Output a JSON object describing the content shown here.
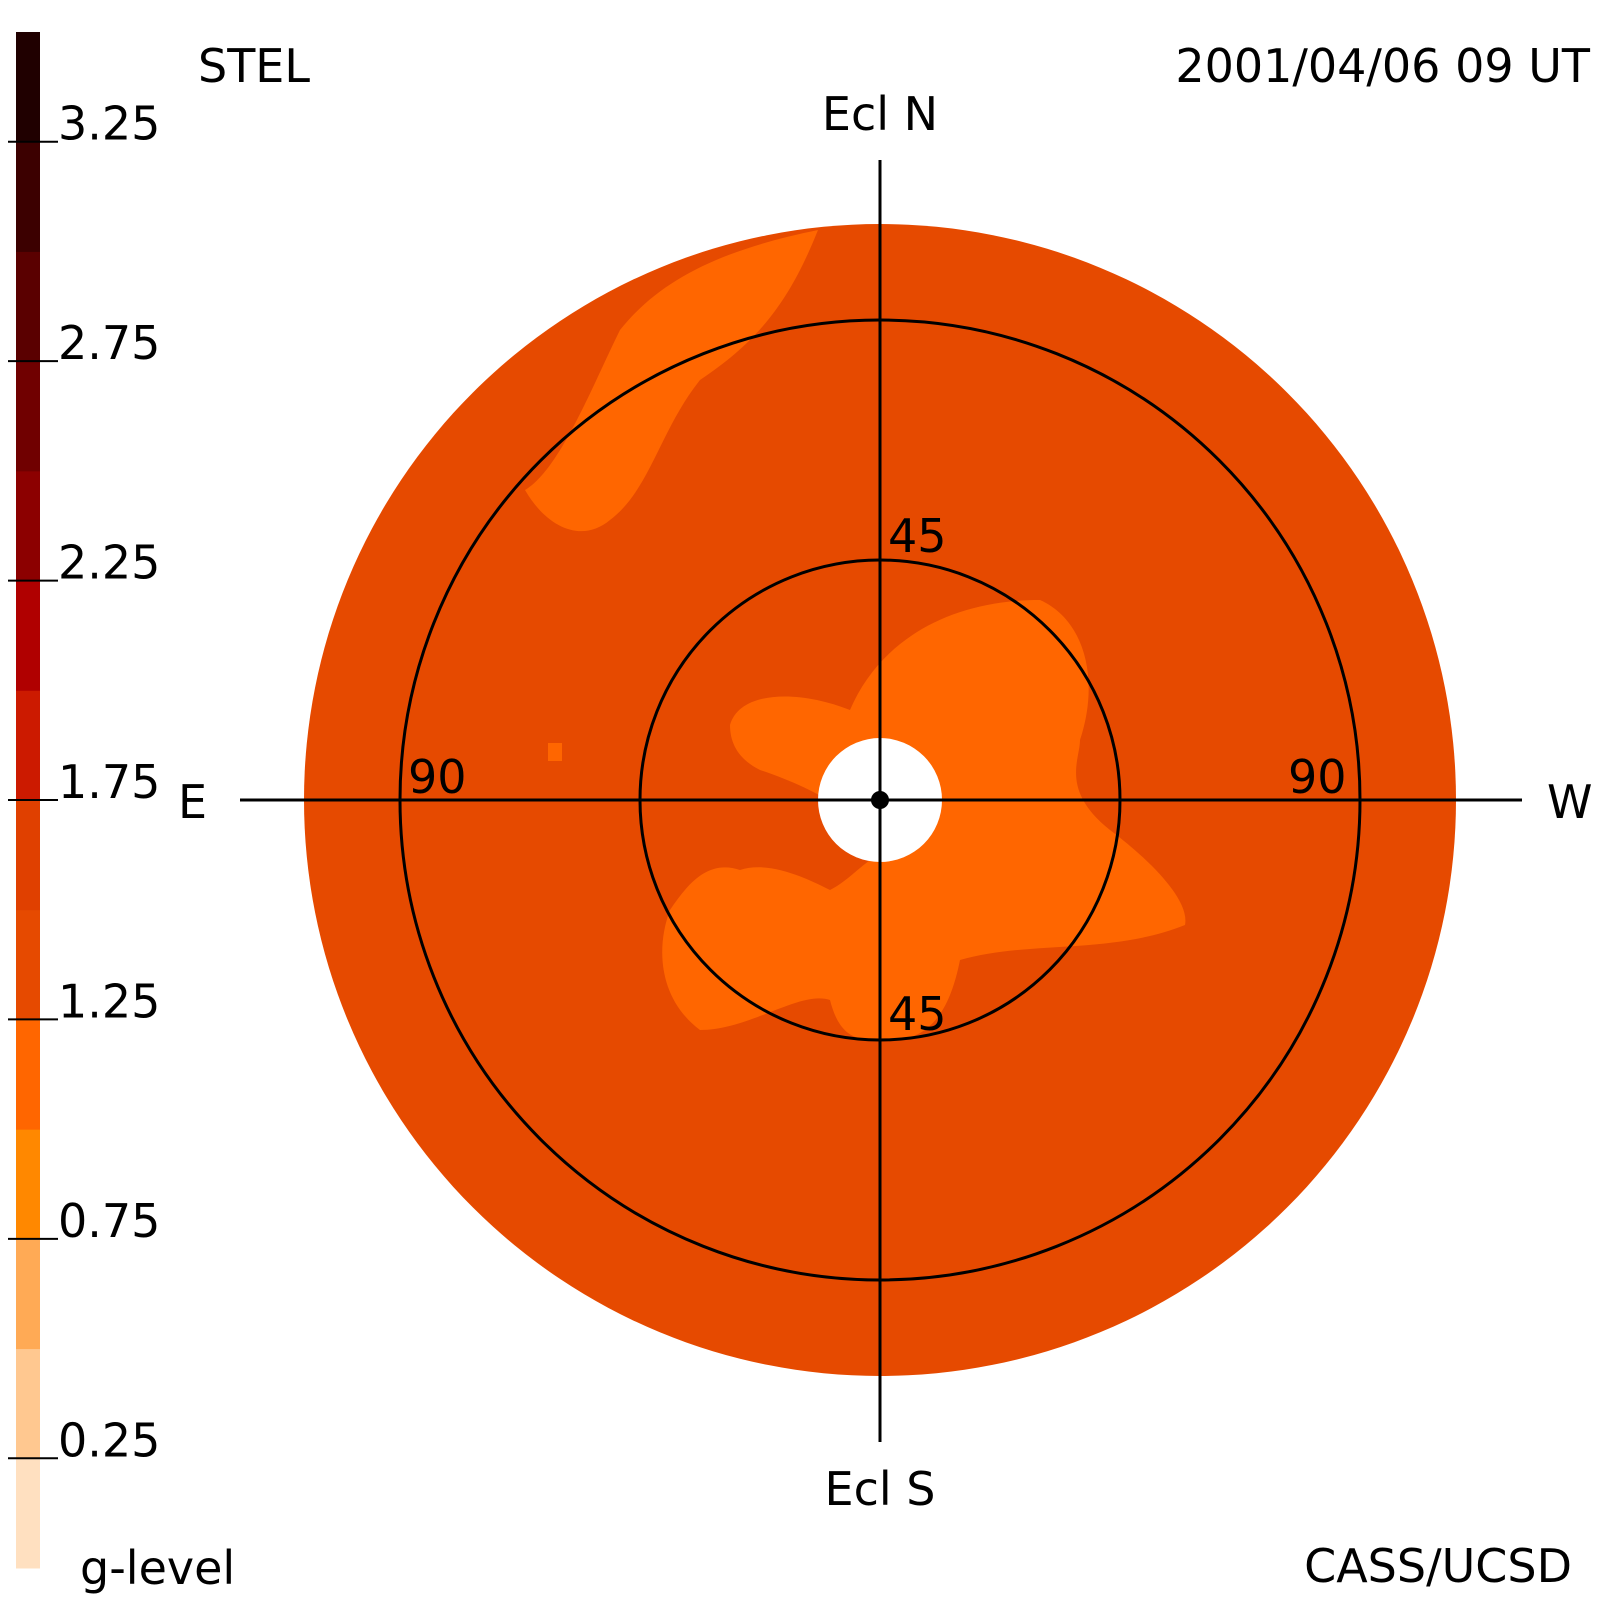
{
  "chart_data": {
    "type": "heatmap",
    "projection": "sky map (fisheye) centered on the Sun",
    "observatory": "STEL",
    "timestamp": "2001/04/06 09 UT",
    "credit": "CASS/UCSD",
    "colorbar": {
      "label": "g-level",
      "ticks": [
        "3.25",
        "2.75",
        "2.25",
        "1.75",
        "1.25",
        "0.75",
        "0.25"
      ],
      "tick_values": [
        3.25,
        2.75,
        2.25,
        1.75,
        1.25,
        0.75,
        0.25
      ],
      "range": [
        0,
        3.5
      ],
      "colors_bottom_to_top": [
        "#ffe0c0",
        "#ffc890",
        "#ffaa55",
        "#ff8800",
        "#ff6600",
        "#e64a00",
        "#e04000",
        "#cc1a00",
        "#b00000",
        "#8c0000",
        "#700000",
        "#5a0000",
        "#3c0000",
        "#200000"
      ]
    },
    "directions": {
      "north": "Ecl N",
      "south": "Ecl S",
      "east": "E",
      "west": "W"
    },
    "elongation_rings": [
      {
        "value": 45,
        "labels": [
          "45",
          "45"
        ]
      },
      {
        "value": 90,
        "labels": [
          "90",
          "90"
        ]
      }
    ],
    "background_level": 1.1,
    "enhanced_level": 0.75,
    "colors": {
      "background_fill": "#e64a00",
      "enhanced_fill": "#ff6600",
      "sun": "#ffffff"
    }
  }
}
